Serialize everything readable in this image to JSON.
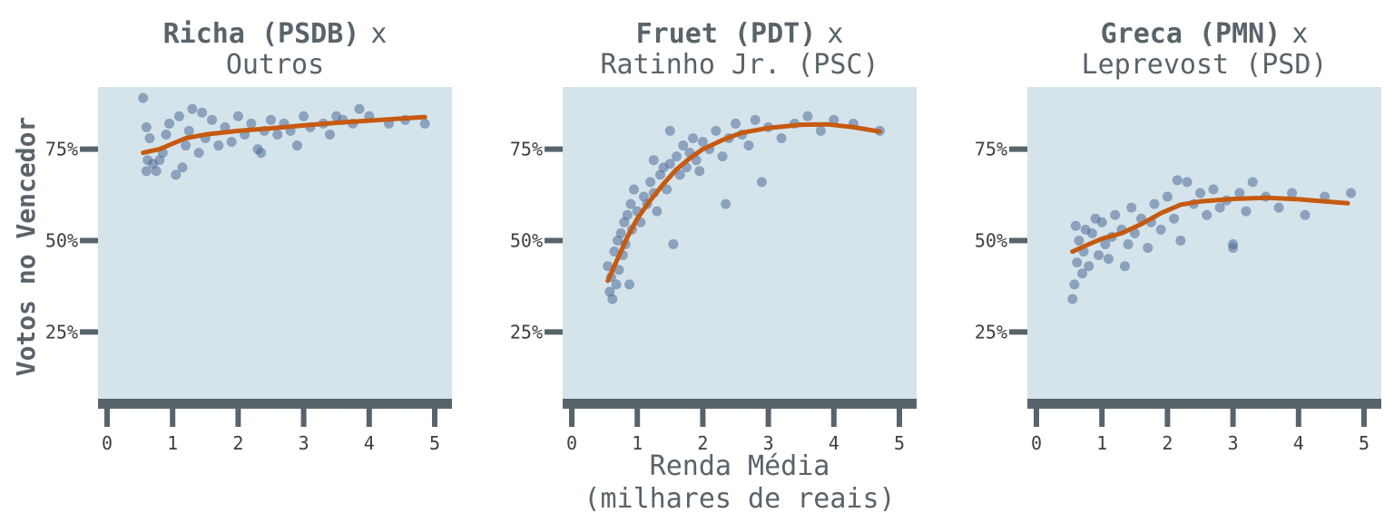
{
  "figure": {
    "xlabel_line1": "Renda Média",
    "xlabel_line2": "(milhares de reais)",
    "ylabel": "Votos no Vencedor"
  },
  "style": {
    "panel_bg": "#d5e4eb",
    "axis_color": "#59636a",
    "point_color": "#4f6a96",
    "line_color": "#c65a11"
  },
  "chart_data": [
    {
      "type": "scatter",
      "title_bold": "Richa (PSDB)",
      "title_x": "x",
      "subtitle": "Outros",
      "xlim": [
        0,
        5
      ],
      "ylim": [
        0.05,
        0.92
      ],
      "xticks": [
        "0",
        "1",
        "2",
        "3",
        "4",
        "5"
      ],
      "yticks": [
        "25%",
        "50%",
        "75%"
      ],
      "ytick_values": [
        0.25,
        0.5,
        0.75
      ],
      "trend": [
        [
          0.55,
          0.74
        ],
        [
          0.8,
          0.75
        ],
        [
          1.0,
          0.765
        ],
        [
          1.2,
          0.78
        ],
        [
          1.5,
          0.79
        ],
        [
          2.0,
          0.8
        ],
        [
          2.5,
          0.807
        ],
        [
          3.0,
          0.815
        ],
        [
          3.5,
          0.822
        ],
        [
          4.0,
          0.828
        ],
        [
          4.5,
          0.834
        ],
        [
          4.85,
          0.838
        ]
      ],
      "points": [
        [
          0.55,
          0.89
        ],
        [
          0.6,
          0.81
        ],
        [
          0.6,
          0.69
        ],
        [
          0.62,
          0.72
        ],
        [
          0.65,
          0.78
        ],
        [
          0.7,
          0.71
        ],
        [
          0.75,
          0.69
        ],
        [
          0.8,
          0.72
        ],
        [
          0.85,
          0.74
        ],
        [
          0.9,
          0.79
        ],
        [
          0.95,
          0.82
        ],
        [
          1.05,
          0.68
        ],
        [
          1.1,
          0.84
        ],
        [
          1.15,
          0.7
        ],
        [
          1.2,
          0.76
        ],
        [
          1.25,
          0.8
        ],
        [
          1.3,
          0.86
        ],
        [
          1.4,
          0.74
        ],
        [
          1.45,
          0.85
        ],
        [
          1.5,
          0.78
        ],
        [
          1.6,
          0.83
        ],
        [
          1.7,
          0.76
        ],
        [
          1.8,
          0.81
        ],
        [
          1.9,
          0.77
        ],
        [
          2.0,
          0.84
        ],
        [
          2.1,
          0.79
        ],
        [
          2.2,
          0.82
        ],
        [
          2.3,
          0.75
        ],
        [
          2.35,
          0.74
        ],
        [
          2.4,
          0.8
        ],
        [
          2.5,
          0.83
        ],
        [
          2.6,
          0.79
        ],
        [
          2.7,
          0.82
        ],
        [
          2.8,
          0.8
        ],
        [
          2.9,
          0.76
        ],
        [
          3.0,
          0.84
        ],
        [
          3.1,
          0.81
        ],
        [
          3.3,
          0.82
        ],
        [
          3.4,
          0.79
        ],
        [
          3.5,
          0.84
        ],
        [
          3.6,
          0.83
        ],
        [
          3.75,
          0.82
        ],
        [
          3.85,
          0.86
        ],
        [
          4.0,
          0.84
        ],
        [
          4.3,
          0.82
        ],
        [
          4.55,
          0.83
        ],
        [
          4.85,
          0.82
        ]
      ]
    },
    {
      "type": "scatter",
      "title_bold": "Fruet (PDT)",
      "title_x": "x",
      "subtitle": "Ratinho Jr. (PSC)",
      "xlim": [
        0,
        5
      ],
      "ylim": [
        0.05,
        0.92
      ],
      "xticks": [
        "0",
        "1",
        "2",
        "3",
        "4",
        "5"
      ],
      "yticks": [
        "25%",
        "50%",
        "75%"
      ],
      "ytick_values": [
        0.25,
        0.5,
        0.75
      ],
      "trend": [
        [
          0.55,
          0.39
        ],
        [
          0.7,
          0.45
        ],
        [
          0.85,
          0.51
        ],
        [
          1.0,
          0.56
        ],
        [
          1.2,
          0.61
        ],
        [
          1.4,
          0.655
        ],
        [
          1.6,
          0.695
        ],
        [
          1.8,
          0.725
        ],
        [
          2.0,
          0.75
        ],
        [
          2.3,
          0.775
        ],
        [
          2.6,
          0.795
        ],
        [
          3.0,
          0.808
        ],
        [
          3.5,
          0.817
        ],
        [
          3.9,
          0.818
        ],
        [
          4.3,
          0.81
        ],
        [
          4.7,
          0.798
        ]
      ],
      "points": [
        [
          0.55,
          0.43
        ],
        [
          0.58,
          0.36
        ],
        [
          0.6,
          0.4
        ],
        [
          0.62,
          0.34
        ],
        [
          0.65,
          0.47
        ],
        [
          0.68,
          0.38
        ],
        [
          0.7,
          0.5
        ],
        [
          0.72,
          0.42
        ],
        [
          0.75,
          0.52
        ],
        [
          0.78,
          0.46
        ],
        [
          0.8,
          0.55
        ],
        [
          0.82,
          0.49
        ],
        [
          0.85,
          0.57
        ],
        [
          0.88,
          0.38
        ],
        [
          0.9,
          0.6
        ],
        [
          0.92,
          0.53
        ],
        [
          0.95,
          0.64
        ],
        [
          1.0,
          0.58
        ],
        [
          1.05,
          0.55
        ],
        [
          1.1,
          0.62
        ],
        [
          1.15,
          0.6
        ],
        [
          1.2,
          0.66
        ],
        [
          1.25,
          0.63
        ],
        [
          1.3,
          0.58
        ],
        [
          1.35,
          0.68
        ],
        [
          1.4,
          0.7
        ],
        [
          1.45,
          0.64
        ],
        [
          1.5,
          0.71
        ],
        [
          1.55,
          0.49
        ],
        [
          1.6,
          0.73
        ],
        [
          1.65,
          0.68
        ],
        [
          1.7,
          0.76
        ],
        [
          1.75,
          0.7
        ],
        [
          1.8,
          0.74
        ],
        [
          1.85,
          0.78
        ],
        [
          1.9,
          0.72
        ],
        [
          1.95,
          0.69
        ],
        [
          2.0,
          0.77
        ],
        [
          2.1,
          0.75
        ],
        [
          2.2,
          0.8
        ],
        [
          2.3,
          0.73
        ],
        [
          2.35,
          0.6
        ],
        [
          2.4,
          0.78
        ],
        [
          2.5,
          0.82
        ],
        [
          2.6,
          0.79
        ],
        [
          2.7,
          0.76
        ],
        [
          2.8,
          0.83
        ],
        [
          2.9,
          0.66
        ],
        [
          3.0,
          0.81
        ],
        [
          3.2,
          0.78
        ],
        [
          3.4,
          0.82
        ],
        [
          3.6,
          0.84
        ],
        [
          3.8,
          0.8
        ],
        [
          4.0,
          0.83
        ],
        [
          4.3,
          0.82
        ],
        [
          4.7,
          0.8
        ],
        [
          1.5,
          0.8
        ],
        [
          1.25,
          0.72
        ]
      ]
    },
    {
      "type": "scatter",
      "title_bold": "Greca (PMN)",
      "title_x": "x",
      "subtitle": "Leprevost (PSD)",
      "xlim": [
        0,
        5
      ],
      "ylim": [
        0.05,
        0.92
      ],
      "xticks": [
        "0",
        "1",
        "2",
        "3",
        "4",
        "5"
      ],
      "yticks": [
        "25%",
        "50%",
        "75%"
      ],
      "ytick_values": [
        0.25,
        0.5,
        0.75
      ],
      "trend": [
        [
          0.55,
          0.47
        ],
        [
          0.8,
          0.49
        ],
        [
          1.0,
          0.505
        ],
        [
          1.3,
          0.52
        ],
        [
          1.6,
          0.545
        ],
        [
          1.9,
          0.575
        ],
        [
          2.2,
          0.598
        ],
        [
          2.5,
          0.607
        ],
        [
          3.0,
          0.614
        ],
        [
          3.5,
          0.617
        ],
        [
          4.0,
          0.613
        ],
        [
          4.4,
          0.607
        ],
        [
          4.75,
          0.602
        ]
      ],
      "points": [
        [
          0.55,
          0.34
        ],
        [
          0.58,
          0.38
        ],
        [
          0.6,
          0.54
        ],
        [
          0.62,
          0.44
        ],
        [
          0.65,
          0.5
        ],
        [
          0.7,
          0.41
        ],
        [
          0.72,
          0.47
        ],
        [
          0.75,
          0.53
        ],
        [
          0.8,
          0.43
        ],
        [
          0.85,
          0.52
        ],
        [
          0.9,
          0.56
        ],
        [
          0.95,
          0.46
        ],
        [
          1.0,
          0.55
        ],
        [
          1.05,
          0.49
        ],
        [
          1.1,
          0.45
        ],
        [
          1.15,
          0.51
        ],
        [
          1.2,
          0.57
        ],
        [
          1.3,
          0.53
        ],
        [
          1.35,
          0.43
        ],
        [
          1.4,
          0.49
        ],
        [
          1.45,
          0.59
        ],
        [
          1.5,
          0.52
        ],
        [
          1.6,
          0.56
        ],
        [
          1.7,
          0.48
        ],
        [
          1.75,
          0.55
        ],
        [
          1.8,
          0.6
        ],
        [
          1.9,
          0.53
        ],
        [
          2.0,
          0.62
        ],
        [
          2.1,
          0.56
        ],
        [
          2.2,
          0.5
        ],
        [
          2.3,
          0.66
        ],
        [
          2.4,
          0.6
        ],
        [
          2.5,
          0.63
        ],
        [
          2.6,
          0.57
        ],
        [
          2.7,
          0.64
        ],
        [
          2.8,
          0.59
        ],
        [
          2.9,
          0.61
        ],
        [
          3.0,
          0.49
        ],
        [
          3.1,
          0.63
        ],
        [
          3.2,
          0.58
        ],
        [
          3.3,
          0.66
        ],
        [
          3.5,
          0.62
        ],
        [
          3.7,
          0.59
        ],
        [
          3.9,
          0.63
        ],
        [
          4.1,
          0.57
        ],
        [
          4.4,
          0.62
        ],
        [
          4.8,
          0.63
        ],
        [
          2.15,
          0.665
        ],
        [
          3.0,
          0.48
        ]
      ]
    }
  ]
}
